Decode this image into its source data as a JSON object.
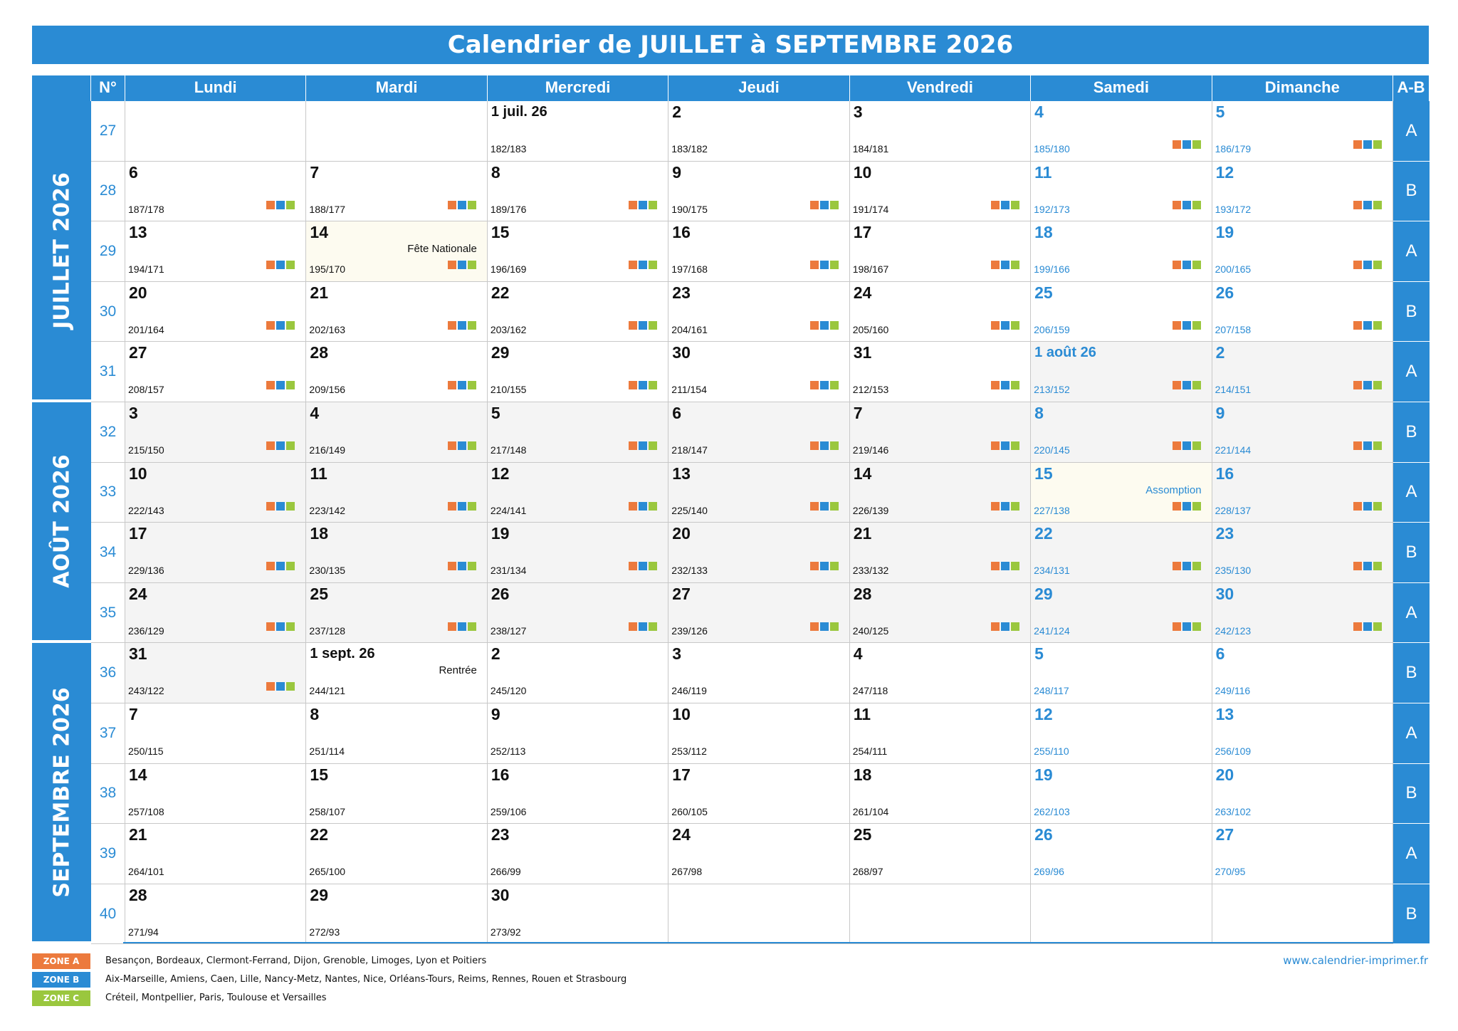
{
  "title": "Calendrier de JUILLET à SEPTEMBRE 2026",
  "header": {
    "week_label": "N°",
    "ab_label": "A-B",
    "days": [
      "Lundi",
      "Mardi",
      "Mercredi",
      "Jeudi",
      "Vendredi",
      "Samedi",
      "Dimanche"
    ]
  },
  "months": [
    {
      "label": "JUILLET 2026",
      "first_week": 0,
      "week_count": 5
    },
    {
      "label": "AOÛT 2026",
      "first_week": 5,
      "week_count": 4
    },
    {
      "label": "SEPTEMBRE 2026",
      "first_week": 9,
      "week_count": 5
    }
  ],
  "weeks": [
    {
      "num": "27",
      "ab": "A",
      "days": [
        null,
        null,
        {
          "label": "1 juil. 26",
          "yd": "182/183",
          "month": "jul"
        },
        {
          "label": "2",
          "yd": "183/182",
          "month": "jul"
        },
        {
          "label": "3",
          "yd": "184/181",
          "month": "jul"
        },
        {
          "label": "4",
          "yd": "185/180",
          "month": "jul",
          "zones": true
        },
        {
          "label": "5",
          "yd": "186/179",
          "month": "jul",
          "zones": true
        }
      ]
    },
    {
      "num": "28",
      "ab": "B",
      "days": [
        {
          "label": "6",
          "yd": "187/178",
          "month": "jul",
          "zones": true
        },
        {
          "label": "7",
          "yd": "188/177",
          "month": "jul",
          "zones": true
        },
        {
          "label": "8",
          "yd": "189/176",
          "month": "jul",
          "zones": true
        },
        {
          "label": "9",
          "yd": "190/175",
          "month": "jul",
          "zones": true
        },
        {
          "label": "10",
          "yd": "191/174",
          "month": "jul",
          "zones": true
        },
        {
          "label": "11",
          "yd": "192/173",
          "month": "jul",
          "zones": true
        },
        {
          "label": "12",
          "yd": "193/172",
          "month": "jul",
          "zones": true
        }
      ]
    },
    {
      "num": "29",
      "ab": "A",
      "days": [
        {
          "label": "13",
          "yd": "194/171",
          "month": "jul",
          "zones": true
        },
        {
          "label": "14",
          "yd": "195/170",
          "month": "jul",
          "zones": true,
          "event": "Fête Nationale",
          "holiday": true
        },
        {
          "label": "15",
          "yd": "196/169",
          "month": "jul",
          "zones": true
        },
        {
          "label": "16",
          "yd": "197/168",
          "month": "jul",
          "zones": true
        },
        {
          "label": "17",
          "yd": "198/167",
          "month": "jul",
          "zones": true
        },
        {
          "label": "18",
          "yd": "199/166",
          "month": "jul",
          "zones": true
        },
        {
          "label": "19",
          "yd": "200/165",
          "month": "jul",
          "zones": true
        }
      ]
    },
    {
      "num": "30",
      "ab": "B",
      "days": [
        {
          "label": "20",
          "yd": "201/164",
          "month": "jul",
          "zones": true
        },
        {
          "label": "21",
          "yd": "202/163",
          "month": "jul",
          "zones": true
        },
        {
          "label": "22",
          "yd": "203/162",
          "month": "jul",
          "zones": true
        },
        {
          "label": "23",
          "yd": "204/161",
          "month": "jul",
          "zones": true
        },
        {
          "label": "24",
          "yd": "205/160",
          "month": "jul",
          "zones": true
        },
        {
          "label": "25",
          "yd": "206/159",
          "month": "jul",
          "zones": true
        },
        {
          "label": "26",
          "yd": "207/158",
          "month": "jul",
          "zones": true
        }
      ]
    },
    {
      "num": "31",
      "ab": "A",
      "days": [
        {
          "label": "27",
          "yd": "208/157",
          "month": "jul",
          "zones": true
        },
        {
          "label": "28",
          "yd": "209/156",
          "month": "jul",
          "zones": true
        },
        {
          "label": "29",
          "yd": "210/155",
          "month": "jul",
          "zones": true
        },
        {
          "label": "30",
          "yd": "211/154",
          "month": "jul",
          "zones": true
        },
        {
          "label": "31",
          "yd": "212/153",
          "month": "jul",
          "zones": true
        },
        {
          "label": "1 août 26",
          "yd": "213/152",
          "month": "aug",
          "zones": true
        },
        {
          "label": "2",
          "yd": "214/151",
          "month": "aug",
          "zones": true
        }
      ]
    },
    {
      "num": "32",
      "ab": "B",
      "days": [
        {
          "label": "3",
          "yd": "215/150",
          "month": "aug",
          "zones": true
        },
        {
          "label": "4",
          "yd": "216/149",
          "month": "aug",
          "zones": true
        },
        {
          "label": "5",
          "yd": "217/148",
          "month": "aug",
          "zones": true
        },
        {
          "label": "6",
          "yd": "218/147",
          "month": "aug",
          "zones": true
        },
        {
          "label": "7",
          "yd": "219/146",
          "month": "aug",
          "zones": true
        },
        {
          "label": "8",
          "yd": "220/145",
          "month": "aug",
          "zones": true
        },
        {
          "label": "9",
          "yd": "221/144",
          "month": "aug",
          "zones": true
        }
      ]
    },
    {
      "num": "33",
      "ab": "A",
      "days": [
        {
          "label": "10",
          "yd": "222/143",
          "month": "aug",
          "zones": true
        },
        {
          "label": "11",
          "yd": "223/142",
          "month": "aug",
          "zones": true
        },
        {
          "label": "12",
          "yd": "224/141",
          "month": "aug",
          "zones": true
        },
        {
          "label": "13",
          "yd": "225/140",
          "month": "aug",
          "zones": true
        },
        {
          "label": "14",
          "yd": "226/139",
          "month": "aug",
          "zones": true
        },
        {
          "label": "15",
          "yd": "227/138",
          "month": "aug",
          "zones": true,
          "event": "Assomption",
          "holiday": true
        },
        {
          "label": "16",
          "yd": "228/137",
          "month": "aug",
          "zones": true
        }
      ]
    },
    {
      "num": "34",
      "ab": "B",
      "days": [
        {
          "label": "17",
          "yd": "229/136",
          "month": "aug",
          "zones": true
        },
        {
          "label": "18",
          "yd": "230/135",
          "month": "aug",
          "zones": true
        },
        {
          "label": "19",
          "yd": "231/134",
          "month": "aug",
          "zones": true
        },
        {
          "label": "20",
          "yd": "232/133",
          "month": "aug",
          "zones": true
        },
        {
          "label": "21",
          "yd": "233/132",
          "month": "aug",
          "zones": true
        },
        {
          "label": "22",
          "yd": "234/131",
          "month": "aug",
          "zones": true
        },
        {
          "label": "23",
          "yd": "235/130",
          "month": "aug",
          "zones": true
        }
      ]
    },
    {
      "num": "35",
      "ab": "A",
      "days": [
        {
          "label": "24",
          "yd": "236/129",
          "month": "aug",
          "zones": true
        },
        {
          "label": "25",
          "yd": "237/128",
          "month": "aug",
          "zones": true
        },
        {
          "label": "26",
          "yd": "238/127",
          "month": "aug",
          "zones": true
        },
        {
          "label": "27",
          "yd": "239/126",
          "month": "aug",
          "zones": true
        },
        {
          "label": "28",
          "yd": "240/125",
          "month": "aug",
          "zones": true
        },
        {
          "label": "29",
          "yd": "241/124",
          "month": "aug",
          "zones": true
        },
        {
          "label": "30",
          "yd": "242/123",
          "month": "aug",
          "zones": true
        }
      ]
    },
    {
      "num": "36",
      "ab": "B",
      "days": [
        {
          "label": "31",
          "yd": "243/122",
          "month": "aug",
          "zones": true
        },
        {
          "label": "1 sept. 26",
          "yd": "244/121",
          "month": "sep",
          "event": "Rentrée"
        },
        {
          "label": "2",
          "yd": "245/120",
          "month": "sep"
        },
        {
          "label": "3",
          "yd": "246/119",
          "month": "sep"
        },
        {
          "label": "4",
          "yd": "247/118",
          "month": "sep"
        },
        {
          "label": "5",
          "yd": "248/117",
          "month": "sep"
        },
        {
          "label": "6",
          "yd": "249/116",
          "month": "sep"
        }
      ]
    },
    {
      "num": "37",
      "ab": "A",
      "days": [
        {
          "label": "7",
          "yd": "250/115",
          "month": "sep"
        },
        {
          "label": "8",
          "yd": "251/114",
          "month": "sep"
        },
        {
          "label": "9",
          "yd": "252/113",
          "month": "sep"
        },
        {
          "label": "10",
          "yd": "253/112",
          "month": "sep"
        },
        {
          "label": "11",
          "yd": "254/111",
          "month": "sep"
        },
        {
          "label": "12",
          "yd": "255/110",
          "month": "sep"
        },
        {
          "label": "13",
          "yd": "256/109",
          "month": "sep"
        }
      ]
    },
    {
      "num": "38",
      "ab": "B",
      "days": [
        {
          "label": "14",
          "yd": "257/108",
          "month": "sep"
        },
        {
          "label": "15",
          "yd": "258/107",
          "month": "sep"
        },
        {
          "label": "16",
          "yd": "259/106",
          "month": "sep"
        },
        {
          "label": "17",
          "yd": "260/105",
          "month": "sep"
        },
        {
          "label": "18",
          "yd": "261/104",
          "month": "sep"
        },
        {
          "label": "19",
          "yd": "262/103",
          "month": "sep"
        },
        {
          "label": "20",
          "yd": "263/102",
          "month": "sep"
        }
      ]
    },
    {
      "num": "39",
      "ab": "A",
      "days": [
        {
          "label": "21",
          "yd": "264/101",
          "month": "sep"
        },
        {
          "label": "22",
          "yd": "265/100",
          "month": "sep"
        },
        {
          "label": "23",
          "yd": "266/99",
          "month": "sep"
        },
        {
          "label": "24",
          "yd": "267/98",
          "month": "sep"
        },
        {
          "label": "25",
          "yd": "268/97",
          "month": "sep"
        },
        {
          "label": "26",
          "yd": "269/96",
          "month": "sep"
        },
        {
          "label": "27",
          "yd": "270/95",
          "month": "sep"
        }
      ]
    },
    {
      "num": "40",
      "ab": "B",
      "days": [
        {
          "label": "28",
          "yd": "271/94",
          "month": "sep"
        },
        {
          "label": "29",
          "yd": "272/93",
          "month": "sep"
        },
        {
          "label": "30",
          "yd": "273/92",
          "month": "sep"
        },
        null,
        null,
        null,
        null
      ]
    }
  ],
  "legend": [
    {
      "badge": "ZONE A",
      "color": "#ec7a3d",
      "text": "Besançon, Bordeaux, Clermont-Ferrand, Dijon, Grenoble, Limoges, Lyon et Poitiers"
    },
    {
      "badge": "ZONE B",
      "color": "#2a8bd4",
      "text": "Aix-Marseille, Amiens, Caen, Lille, Nancy-Metz, Nantes, Nice, Orléans-Tours, Reims, Rennes, Rouen et Strasbourg"
    },
    {
      "badge": "ZONE C",
      "color": "#9ac73e",
      "text": "Créteil, Montpellier, Paris, Toulouse et Versailles"
    }
  ],
  "website": "www.calendrier-imprimer.fr",
  "colors": {
    "accent": "#2a8bd4",
    "zone_a": "#ec7a3d",
    "zone_b": "#2a8bd4",
    "zone_c": "#9ac73e"
  }
}
